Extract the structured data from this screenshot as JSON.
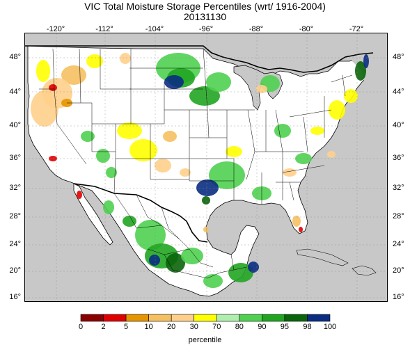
{
  "title": "VIC Total Moisture Storage Percentiles (wrt/ 1916-2004)",
  "date": "20131130",
  "lon_labels": [
    "-120°",
    "-112°",
    "-104°",
    "-96°",
    "-88°",
    "-80°",
    "-72°"
  ],
  "lat_labels": [
    "48°",
    "44°",
    "40°",
    "36°",
    "32°",
    "28°",
    "24°",
    "20°",
    "16°"
  ],
  "legend": {
    "title": "percentile",
    "ticks": [
      "0",
      "2",
      "5",
      "10",
      "20",
      "30",
      "70",
      "80",
      "90",
      "95",
      "98",
      "100"
    ],
    "colors": [
      "#8b0000",
      "#e00000",
      "#e69500",
      "#f5c060",
      "#ffd08c",
      "#ffff00",
      "#ffffff",
      "#b0eeb0",
      "#50d050",
      "#21a521",
      "#0a640a",
      "#0a2d82"
    ]
  },
  "map_colors": {
    "ocean": "#c8c8c8",
    "land_outside": "#c8c8c8",
    "canada": "#c8c8c8",
    "land": "#ffffff"
  }
}
